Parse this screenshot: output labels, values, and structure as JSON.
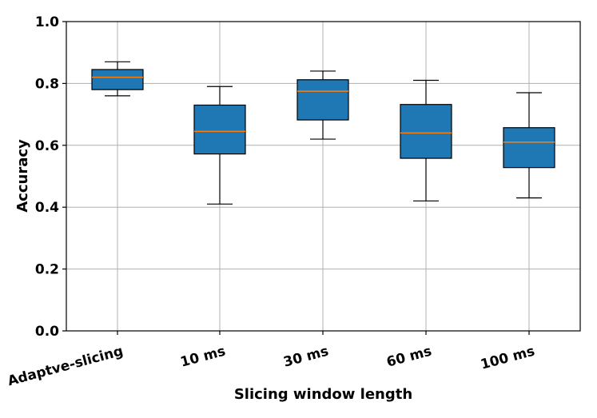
{
  "chart_data": {
    "type": "box",
    "xlabel": "Slicing window length",
    "ylabel": "Accuracy",
    "ylim": [
      0.0,
      1.0
    ],
    "yticks": [
      "0.0",
      "0.2",
      "0.4",
      "0.6",
      "0.8",
      "1.0"
    ],
    "ytick_values": [
      0.0,
      0.2,
      0.4,
      0.6,
      0.8,
      1.0
    ],
    "grid": true,
    "box_color": "#1f77b4",
    "median_color": "#ff7f0e",
    "categories": [
      "Adaptve-slicing",
      "10 ms",
      "30 ms",
      "60 ms",
      "100 ms"
    ],
    "boxes": [
      {
        "min": 0.76,
        "q1": 0.78,
        "median": 0.82,
        "q3": 0.845,
        "max": 0.87
      },
      {
        "min": 0.41,
        "q1": 0.572,
        "median": 0.645,
        "q3": 0.73,
        "max": 0.79
      },
      {
        "min": 0.62,
        "q1": 0.682,
        "median": 0.775,
        "q3": 0.812,
        "max": 0.84
      },
      {
        "min": 0.42,
        "q1": 0.558,
        "median": 0.64,
        "q3": 0.732,
        "max": 0.81
      },
      {
        "min": 0.43,
        "q1": 0.528,
        "median": 0.61,
        "q3": 0.657,
        "max": 0.77
      }
    ]
  }
}
